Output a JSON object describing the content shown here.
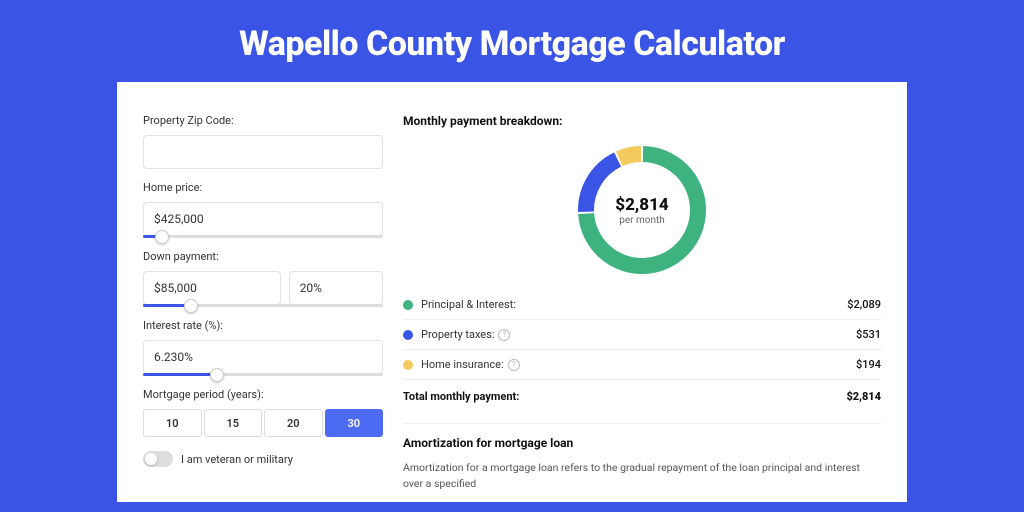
{
  "page": {
    "title": "Wapello County Mortgage Calculator"
  },
  "colors": {
    "brand": "#3a55e6",
    "principal": "#3fb37f",
    "taxes": "#3a55e6",
    "insurance": "#f4c95d",
    "card_bg": "#ffffff",
    "border": "#e2e2e2"
  },
  "form": {
    "zip": {
      "label": "Property Zip Code:",
      "value": ""
    },
    "price": {
      "label": "Home price:",
      "value": "$425,000",
      "slider_pct": 8
    },
    "down": {
      "label": "Down payment:",
      "amount": "$85,000",
      "percent": "20%",
      "slider_pct": 20
    },
    "rate": {
      "label": "Interest rate (%):",
      "value": "6.230%",
      "slider_pct": 31
    },
    "period": {
      "label": "Mortgage period (years):",
      "options": [
        "10",
        "15",
        "20",
        "30"
      ],
      "selected": "30"
    },
    "veteran": {
      "label": "I am veteran or military",
      "checked": false
    }
  },
  "breakdown": {
    "title": "Monthly payment breakdown:",
    "donut": {
      "center_value": "$2,814",
      "center_sub": "per month",
      "segments": [
        {
          "key": "principal",
          "color": "#3fb37f",
          "value": 2089
        },
        {
          "key": "taxes",
          "color": "#3a55e6",
          "value": 531
        },
        {
          "key": "insurance",
          "color": "#f4c95d",
          "value": 194
        }
      ],
      "stroke_width": 16,
      "radius": 56,
      "gap_deg": 2
    },
    "rows": [
      {
        "label": "Principal & Interest:",
        "color": "#3fb37f",
        "value": "$2,089",
        "help": false
      },
      {
        "label": "Property taxes:",
        "color": "#3a55e6",
        "value": "$531",
        "help": true
      },
      {
        "label": "Home insurance:",
        "color": "#f4c95d",
        "value": "$194",
        "help": true
      }
    ],
    "total": {
      "label": "Total monthly payment:",
      "value": "$2,814"
    }
  },
  "amortization": {
    "title": "Amortization for mortgage loan",
    "text": "Amortization for a mortgage loan refers to the gradual repayment of the loan principal and interest over a specified"
  }
}
